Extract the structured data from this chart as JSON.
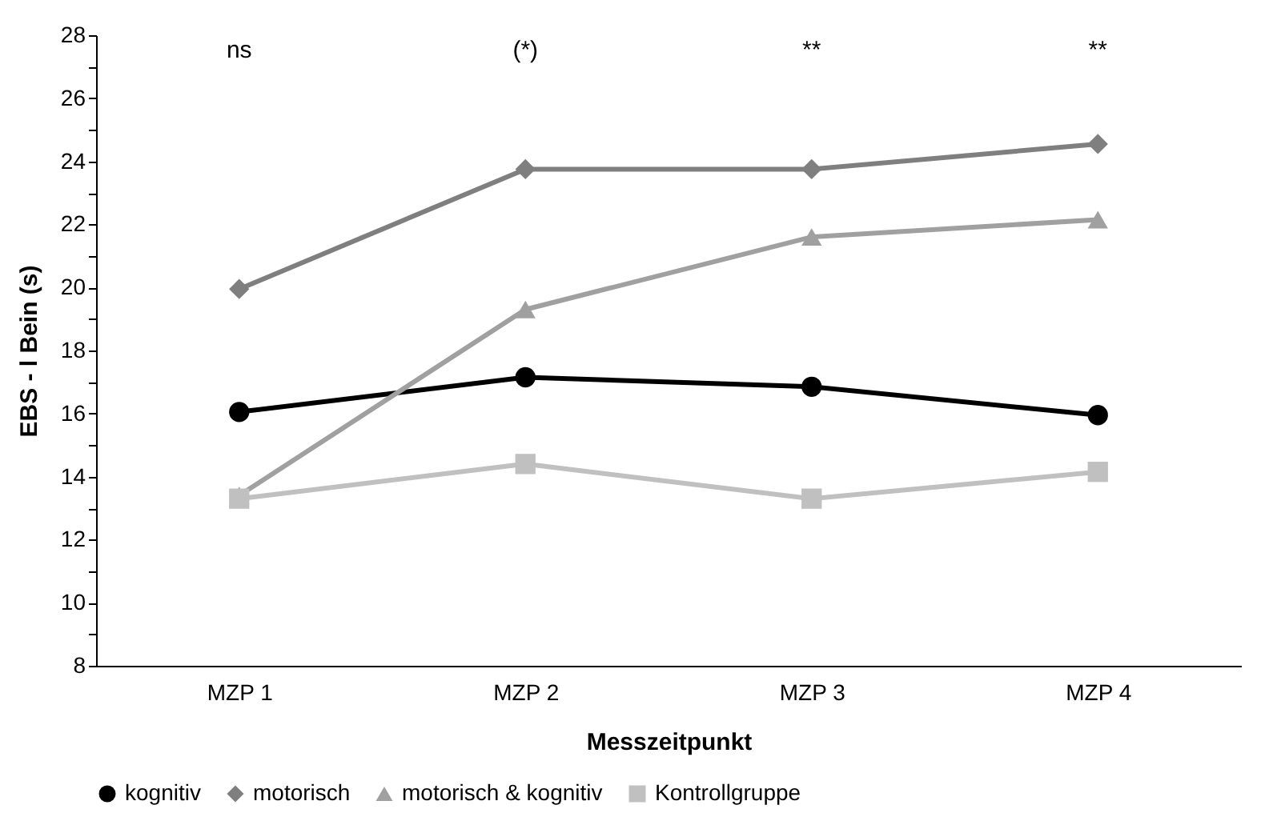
{
  "chart_data": {
    "type": "line",
    "xlabel": "Messzeitpunkt",
    "ylabel": "EBS - l Bein (s)",
    "categories": [
      "MZP 1",
      "MZP 2",
      "MZP 3",
      "MZP 4"
    ],
    "series": [
      {
        "name": "kognitiv",
        "color": "#000000",
        "marker": "circle",
        "values": [
          16.05,
          17.15,
          16.85,
          15.95
        ]
      },
      {
        "name": "motorisch",
        "color": "#7f7f7f",
        "marker": "diamond",
        "values": [
          19.95,
          23.75,
          23.75,
          24.55
        ]
      },
      {
        "name": "motorisch & kognitiv",
        "color": "#a0a0a0",
        "marker": "triangle",
        "values": [
          13.4,
          19.3,
          21.6,
          22.15
        ]
      },
      {
        "name": "Kontrollgruppe",
        "color": "#c0c0c0",
        "marker": "square",
        "values": [
          13.3,
          14.4,
          13.3,
          14.15
        ]
      }
    ],
    "ylim": [
      8,
      28
    ],
    "yticks": [
      8,
      {
        "value": 9,
        "label": null
      },
      10,
      {
        "value": 11,
        "label": null
      },
      12,
      {
        "value": 13,
        "label": null
      },
      14,
      {
        "value": 15,
        "label": null
      },
      16,
      {
        "value": 17,
        "label": null
      },
      18,
      {
        "value": 19,
        "label": null
      },
      20,
      {
        "value": 21,
        "label": null
      },
      22,
      {
        "value": 23,
        "label": null
      },
      24,
      {
        "value": 25,
        "label": null
      },
      26,
      {
        "value": 27,
        "label": null
      },
      28
    ],
    "annotations": [
      "ns",
      "(*)",
      "**",
      "**"
    ],
    "grid": false,
    "legend": "bottom",
    "line_style": "solid"
  }
}
